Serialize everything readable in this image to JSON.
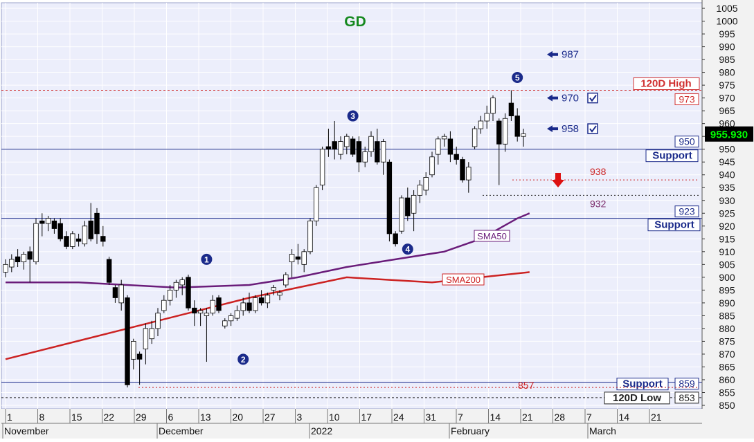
{
  "chart_data": {
    "type": "candlestick",
    "title": "GD",
    "current_price_label": "955.930",
    "ylim": [
      850,
      1005
    ],
    "y_ticks": [
      850,
      855,
      860,
      865,
      870,
      875,
      880,
      885,
      890,
      895,
      900,
      905,
      910,
      915,
      920,
      925,
      930,
      935,
      940,
      945,
      950,
      955,
      960,
      965,
      970,
      975,
      980,
      985,
      990,
      995,
      1000,
      1005
    ],
    "x_tick_labels": [
      "1",
      "8",
      "15",
      "22",
      "29",
      "6",
      "13",
      "20",
      "27",
      "3",
      "10",
      "17",
      "24",
      "31",
      "7",
      "14",
      "21",
      "28",
      "7",
      "14",
      "21"
    ],
    "month_labels": [
      "November",
      "December",
      "2022",
      "February",
      "March"
    ],
    "candles": [
      {
        "o": 902,
        "h": 907,
        "l": 900,
        "c": 905
      },
      {
        "o": 904,
        "h": 909,
        "l": 902,
        "c": 907
      },
      {
        "o": 908,
        "h": 911,
        "l": 904,
        "c": 906
      },
      {
        "o": 906,
        "h": 910,
        "l": 903,
        "c": 909
      },
      {
        "o": 910,
        "h": 912,
        "l": 898,
        "c": 907
      },
      {
        "o": 906,
        "h": 923,
        "l": 905,
        "c": 921
      },
      {
        "o": 922,
        "h": 925,
        "l": 916,
        "c": 921
      },
      {
        "o": 921,
        "h": 924,
        "l": 918,
        "c": 923
      },
      {
        "o": 922,
        "h": 923,
        "l": 917,
        "c": 919
      },
      {
        "o": 921,
        "h": 923,
        "l": 914,
        "c": 915
      },
      {
        "o": 916,
        "h": 918,
        "l": 911,
        "c": 912
      },
      {
        "o": 912,
        "h": 918,
        "l": 911,
        "c": 917
      },
      {
        "o": 915,
        "h": 917,
        "l": 912,
        "c": 914
      },
      {
        "o": 913,
        "h": 922,
        "l": 912,
        "c": 920
      },
      {
        "o": 922,
        "h": 929,
        "l": 914,
        "c": 915
      },
      {
        "o": 925,
        "h": 927,
        "l": 913,
        "c": 917
      },
      {
        "o": 916,
        "h": 920,
        "l": 912,
        "c": 914
      },
      {
        "o": 907,
        "h": 908,
        "l": 897,
        "c": 898
      },
      {
        "o": 896,
        "h": 897,
        "l": 890,
        "c": 892
      },
      {
        "o": 890,
        "h": 899,
        "l": 887,
        "c": 897
      },
      {
        "o": 892,
        "h": 893,
        "l": 857,
        "c": 858
      },
      {
        "o": 868,
        "h": 876,
        "l": 864,
        "c": 875
      },
      {
        "o": 870,
        "h": 871,
        "l": 858,
        "c": 868
      },
      {
        "o": 872,
        "h": 882,
        "l": 866,
        "c": 880
      },
      {
        "o": 876,
        "h": 883,
        "l": 874,
        "c": 880
      },
      {
        "o": 880,
        "h": 888,
        "l": 877,
        "c": 886
      },
      {
        "o": 887,
        "h": 893,
        "l": 886,
        "c": 891
      },
      {
        "o": 891,
        "h": 897,
        "l": 889,
        "c": 895
      },
      {
        "o": 895,
        "h": 899,
        "l": 892,
        "c": 898
      },
      {
        "o": 897,
        "h": 900,
        "l": 893,
        "c": 899
      },
      {
        "o": 900,
        "h": 901,
        "l": 887,
        "c": 888
      },
      {
        "o": 888,
        "h": 891,
        "l": 881,
        "c": 886
      },
      {
        "o": 886,
        "h": 888,
        "l": 881,
        "c": 887
      },
      {
        "o": 885,
        "h": 888,
        "l": 867,
        "c": 886
      },
      {
        "o": 886,
        "h": 893,
        "l": 885,
        "c": 891
      },
      {
        "o": 892,
        "h": 893,
        "l": 886,
        "c": 887
      },
      {
        "o": 881,
        "h": 884,
        "l": 880,
        "c": 883
      },
      {
        "o": 883,
        "h": 886,
        "l": 881,
        "c": 885
      },
      {
        "o": 884,
        "h": 889,
        "l": 883,
        "c": 887
      },
      {
        "o": 887,
        "h": 892,
        "l": 885,
        "c": 890
      },
      {
        "o": 890,
        "h": 894,
        "l": 886,
        "c": 887
      },
      {
        "o": 887,
        "h": 893,
        "l": 886,
        "c": 892
      },
      {
        "o": 892,
        "h": 895,
        "l": 889,
        "c": 890
      },
      {
        "o": 890,
        "h": 894,
        "l": 888,
        "c": 893
      },
      {
        "o": 895,
        "h": 897,
        "l": 893,
        "c": 896
      },
      {
        "o": 893,
        "h": 895,
        "l": 891,
        "c": 894
      },
      {
        "o": 897,
        "h": 902,
        "l": 896,
        "c": 901
      },
      {
        "o": 906,
        "h": 911,
        "l": 900,
        "c": 909
      },
      {
        "o": 908,
        "h": 913,
        "l": 905,
        "c": 907
      },
      {
        "o": 905,
        "h": 911,
        "l": 902,
        "c": 910
      },
      {
        "o": 910,
        "h": 923,
        "l": 909,
        "c": 922
      },
      {
        "o": 922,
        "h": 936,
        "l": 920,
        "c": 935
      },
      {
        "o": 936,
        "h": 951,
        "l": 934,
        "c": 950
      },
      {
        "o": 951,
        "h": 958,
        "l": 947,
        "c": 950
      },
      {
        "o": 953,
        "h": 961,
        "l": 946,
        "c": 950
      },
      {
        "o": 948,
        "h": 955,
        "l": 946,
        "c": 953
      },
      {
        "o": 951,
        "h": 956,
        "l": 948,
        "c": 955
      },
      {
        "o": 954,
        "h": 955,
        "l": 947,
        "c": 948
      },
      {
        "o": 953,
        "h": 955,
        "l": 941,
        "c": 945
      },
      {
        "o": 945,
        "h": 951,
        "l": 943,
        "c": 949
      },
      {
        "o": 949,
        "h": 957,
        "l": 947,
        "c": 955
      },
      {
        "o": 953,
        "h": 958,
        "l": 944,
        "c": 945
      },
      {
        "o": 945,
        "h": 954,
        "l": 940,
        "c": 953
      },
      {
        "o": 945,
        "h": 946,
        "l": 914,
        "c": 917
      },
      {
        "o": 917,
        "h": 918,
        "l": 912,
        "c": 913
      },
      {
        "o": 918,
        "h": 932,
        "l": 917,
        "c": 931
      },
      {
        "o": 931,
        "h": 935,
        "l": 922,
        "c": 924
      },
      {
        "o": 925,
        "h": 934,
        "l": 918,
        "c": 932
      },
      {
        "o": 932,
        "h": 938,
        "l": 929,
        "c": 936
      },
      {
        "o": 934,
        "h": 941,
        "l": 932,
        "c": 939
      },
      {
        "o": 940,
        "h": 949,
        "l": 939,
        "c": 947
      },
      {
        "o": 948,
        "h": 955,
        "l": 944,
        "c": 954
      },
      {
        "o": 954,
        "h": 956,
        "l": 951,
        "c": 955
      },
      {
        "o": 954,
        "h": 957,
        "l": 945,
        "c": 948
      },
      {
        "o": 948,
        "h": 951,
        "l": 944,
        "c": 946
      },
      {
        "o": 946,
        "h": 947,
        "l": 937,
        "c": 938
      },
      {
        "o": 938,
        "h": 945,
        "l": 933,
        "c": 943
      },
      {
        "o": 951,
        "h": 959,
        "l": 950,
        "c": 958
      },
      {
        "o": 958,
        "h": 963,
        "l": 956,
        "c": 961
      },
      {
        "o": 961,
        "h": 967,
        "l": 958,
        "c": 964
      },
      {
        "o": 964,
        "h": 971,
        "l": 961,
        "c": 970
      },
      {
        "o": 961,
        "h": 962,
        "l": 936,
        "c": 952
      },
      {
        "o": 952,
        "h": 964,
        "l": 949,
        "c": 962
      },
      {
        "o": 968,
        "h": 973,
        "l": 961,
        "c": 963
      },
      {
        "o": 963,
        "h": 966,
        "l": 953,
        "c": 955
      },
      {
        "o": 955,
        "h": 958,
        "l": 951,
        "c": 956
      }
    ],
    "horizontal_lines": [
      {
        "name": "120D High",
        "value": 973,
        "label": "973",
        "color": "#d03030"
      },
      {
        "name": "Support",
        "value": 950,
        "label": "950",
        "color": "#1a2a8a"
      },
      {
        "name": "Support",
        "value": 923,
        "label": "923",
        "color": "#1a2a8a"
      },
      {
        "name": "Support",
        "value": 859,
        "label": "859",
        "color": "#1a2a8a"
      },
      {
        "name": "120D Low",
        "value": 853,
        "label": "853",
        "color": "#222222"
      }
    ],
    "sma50": {
      "name": "SMA50",
      "values": [
        [
          0,
          898
        ],
        [
          12,
          898
        ],
        [
          28,
          896
        ],
        [
          40,
          897
        ],
        [
          48,
          900
        ],
        [
          56,
          904
        ],
        [
          64,
          907
        ],
        [
          72,
          910
        ],
        [
          78,
          915
        ],
        [
          84,
          923
        ],
        [
          86,
          925
        ]
      ]
    },
    "sma200": {
      "name": "SMA200",
      "values": [
        [
          0,
          868
        ],
        [
          20,
          880
        ],
        [
          40,
          892
        ],
        [
          56,
          900
        ],
        [
          70,
          898
        ],
        [
          86,
          902
        ]
      ]
    },
    "wave_labels": [
      {
        "label": "1",
        "x": 33,
        "y": 907
      },
      {
        "label": "2",
        "x": 39,
        "y": 868
      },
      {
        "label": "3",
        "x": 57,
        "y": 963
      },
      {
        "label": "4",
        "x": 66,
        "y": 911
      },
      {
        "label": "5",
        "x": 84,
        "y": 978
      }
    ],
    "target_labels": [
      {
        "label": "987",
        "value": 987,
        "checked": false
      },
      {
        "label": "970",
        "value": 970,
        "checked": true
      },
      {
        "label": "958",
        "value": 958,
        "checked": true
      }
    ],
    "level_labels": [
      {
        "label": "938",
        "value": 938
      },
      {
        "label": "932",
        "value": 932
      },
      {
        "label": "857",
        "value": 857
      }
    ],
    "colors": {
      "background": "#eceefb",
      "grid": "#ffffff",
      "frame": "#1a2a8a",
      "up": "#ffffff",
      "down": "#000000",
      "sma50": "#6a1c7a",
      "sma200": "#cc2222",
      "blue_label": "#1a2a8a",
      "red_label": "#cc2222",
      "title": "#16891f",
      "price_box": "#000000",
      "price_text": "#00ff00"
    }
  }
}
